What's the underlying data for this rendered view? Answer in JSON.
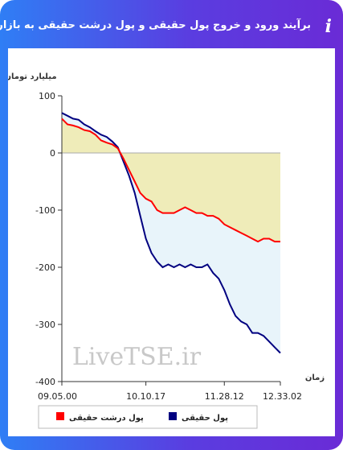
{
  "header": {
    "title": "برآیند ورود و خروج پول حقیقی و پول درشت حقیقی به بازار"
  },
  "chart_data": {
    "type": "line",
    "y_label": "میلیارد تومان",
    "x_label": "زمان",
    "watermark": "LiveTSE.ir",
    "categories": [
      "09.05.00",
      null,
      null,
      null,
      null,
      null,
      null,
      null,
      null,
      null,
      null,
      null,
      null,
      null,
      null,
      "10.10.17",
      null,
      null,
      null,
      null,
      null,
      null,
      null,
      null,
      null,
      null,
      null,
      null,
      null,
      "11.28.12",
      null,
      null,
      null,
      null,
      null,
      null,
      null,
      null,
      null,
      "12.33.02"
    ],
    "ylim": [
      -400,
      100
    ],
    "yticks": [
      100,
      0,
      -100,
      -200,
      -300,
      -400
    ],
    "series": [
      {
        "name": "پول حقیقی",
        "color": "#000080",
        "fill": "#e8f4fa",
        "values": [
          70,
          65,
          60,
          58,
          50,
          45,
          38,
          32,
          28,
          20,
          10,
          -15,
          -40,
          -70,
          -110,
          -150,
          -175,
          -190,
          -200,
          -195,
          -200,
          -195,
          -200,
          -195,
          -200,
          -200,
          -195,
          -210,
          -220,
          -240,
          -265,
          -285,
          -295,
          -300,
          -315,
          -315,
          -320,
          -330,
          -340,
          -350
        ]
      },
      {
        "name": "پول درشت حقیقی",
        "color": "#ff0000",
        "fill": "#efecb9",
        "values": [
          60,
          50,
          48,
          45,
          40,
          38,
          32,
          22,
          18,
          15,
          8,
          -10,
          -30,
          -50,
          -70,
          -80,
          -85,
          -100,
          -105,
          -105,
          -105,
          -100,
          -95,
          -100,
          -105,
          -105,
          -110,
          -110,
          -115,
          -125,
          -130,
          -135,
          -140,
          -145,
          -150,
          -155,
          -150,
          -150,
          -155,
          -155
        ]
      }
    ]
  }
}
